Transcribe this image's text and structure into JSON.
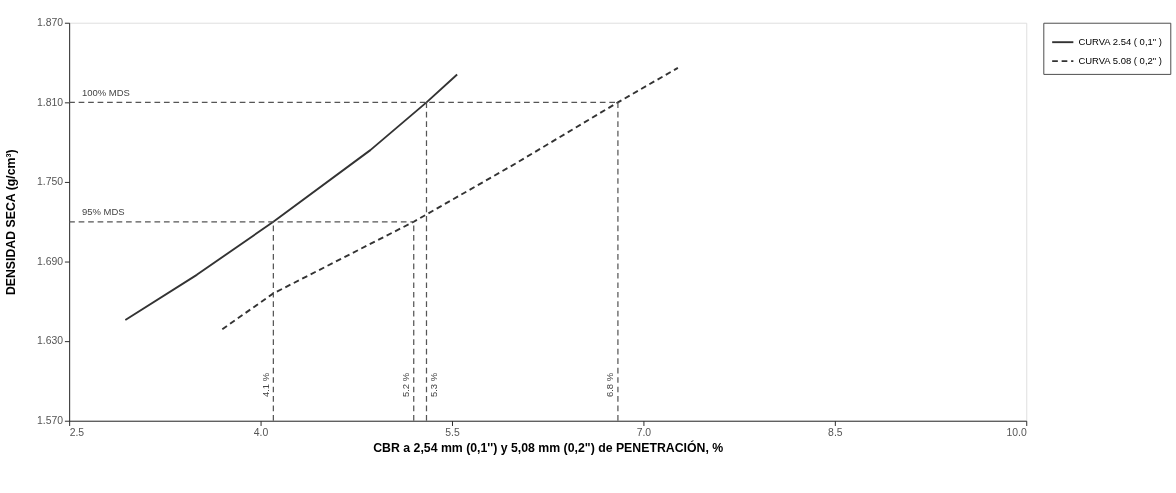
{
  "chart_data": {
    "type": "line",
    "xlabel": "CBR a 2,54 mm (0,1'') y 5,08 mm (0,2\") de PENETRACIÓN, %",
    "ylabel": "DENSIDAD SECA (g/cm³)",
    "xlim": [
      2.5,
      10.0
    ],
    "xticks": [
      2.5,
      {
        "value": 4,
        "label": "4.0"
      },
      5.5,
      {
        "value": 7,
        "label": "7.0"
      },
      8.5,
      {
        "value": 10,
        "label": "10.0"
      }
    ],
    "ylim": [
      1.57,
      1.87
    ],
    "yticks": [
      {
        "value": 1.57,
        "label": "1.570"
      },
      {
        "value": 1.63,
        "label": "1.630"
      },
      {
        "value": 1.69,
        "label": "1.690"
      },
      {
        "value": 1.75,
        "label": "1.750"
      },
      {
        "value": 1.81,
        "label": "1.810"
      },
      {
        "value": 1.87,
        "label": "1.870"
      }
    ],
    "grid": false,
    "legend": "right",
    "marker": "none",
    "series": [
      {
        "name": "CURVA 2.54 ( 0,1\" )",
        "color": "#333333",
        "line_style": "solid",
        "x": [
          2.94,
          3.5,
          4.1,
          4.86,
          5.3,
          5.54
        ],
        "values": [
          1.646,
          1.68,
          1.72,
          1.774,
          1.81,
          1.831
        ]
      },
      {
        "name": "CURVA 5.08 ( 0,2\" )",
        "color": "#333333",
        "line_style": "dashed",
        "x": [
          3.7,
          4.1,
          5.2,
          6.0,
          6.8,
          7.27
        ],
        "values": [
          1.639,
          1.666,
          1.72,
          1.764,
          1.81,
          1.836
        ]
      },
      {
        "color": "#555555",
        "line_style": "dashed",
        "x": [
          2.5,
          5.2
        ],
        "values": [
          1.72,
          1.72
        ]
      },
      {
        "color": "#555555",
        "line_style": "dashed",
        "x": [
          2.5,
          6.8
        ],
        "values": [
          1.81,
          1.81
        ]
      },
      {
        "color": "#555555",
        "line_style": "dashed",
        "x": [
          4.1,
          4.1
        ],
        "values": [
          1.57,
          1.72
        ]
      },
      {
        "color": "#555555",
        "line_style": "dashed",
        "x": [
          5.2,
          5.2
        ],
        "values": [
          1.57,
          1.72
        ]
      },
      {
        "color": "#555555",
        "line_style": "dashed",
        "x": [
          5.3,
          5.3
        ],
        "values": [
          1.57,
          1.81
        ]
      },
      {
        "color": "#555555",
        "line_style": "dashed",
        "x": [
          6.8,
          6.8
        ],
        "values": [
          1.57,
          1.81
        ]
      }
    ],
    "annotations": [
      {
        "text": "100% MDS",
        "x": 2.6,
        "y": 1.81
      },
      {
        "text": "95% MDS",
        "x": 2.6,
        "y": 1.72
      },
      {
        "text": "4.1 %",
        "x": 4.1,
        "y": 1.597
      },
      {
        "text": "5.2 %",
        "x": 5.2,
        "y": 1.597
      },
      {
        "text": "5.3 %",
        "x": 5.3,
        "y": 1.597
      },
      {
        "text": "6.8 %",
        "x": 6.8,
        "y": 1.597
      }
    ]
  }
}
